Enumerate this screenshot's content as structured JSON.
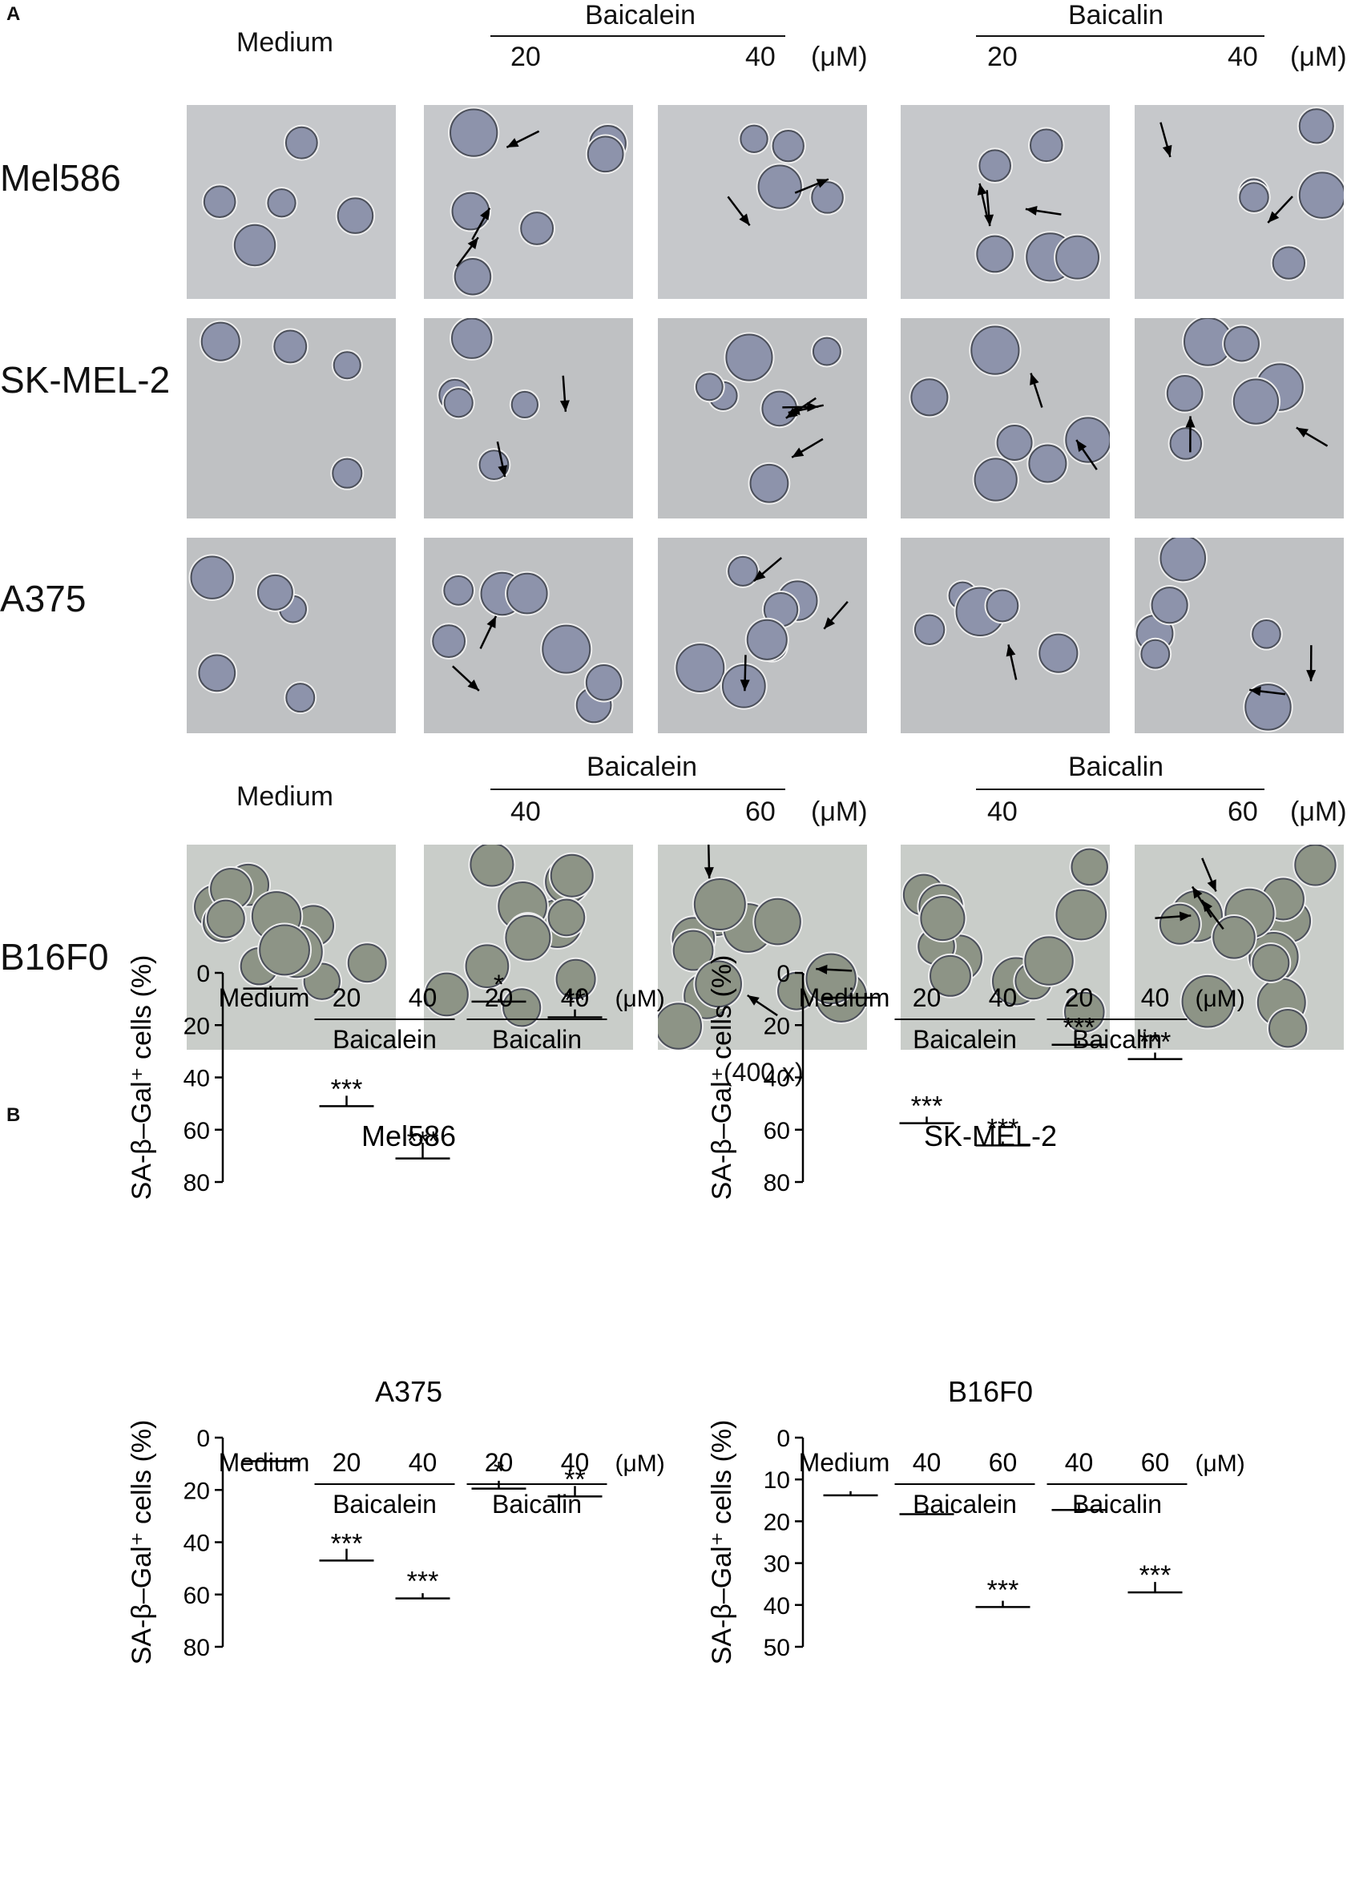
{
  "panel_a": {
    "letter": "A",
    "header_set_1": {
      "medium": "Medium",
      "drug_1": "Baicalein",
      "drug_2": "Baicalin",
      "drug_1_doses": [
        "20",
        "40"
      ],
      "drug_2_doses": [
        "20",
        "40"
      ],
      "unit": "(μM)"
    },
    "header_set_2": {
      "medium": "Medium",
      "drug_1": "Baicalein",
      "drug_2": "Baicalin",
      "drug_1_doses": [
        "40",
        "60"
      ],
      "drug_2_doses": [
        "40",
        "60"
      ],
      "unit": "(μM)"
    },
    "rows": [
      "Mel586",
      "SK-MEL-2",
      "A375",
      "B16F0"
    ],
    "magnification": "(400 x)"
  },
  "panel_b": {
    "letter": "B"
  },
  "chart_data": [
    {
      "type": "bar",
      "title": "Mel586",
      "ylabel": "SA-β–Gal⁺ cells (%)",
      "ylim": [
        0,
        80
      ],
      "yticks": [
        "0",
        "20",
        "40",
        "60",
        "80"
      ],
      "categories": [
        "Medium",
        "20",
        "40",
        "20",
        "40"
      ],
      "values": [
        5,
        47,
        65,
        10,
        14
      ],
      "errors": [
        1,
        4,
        6,
        1,
        3
      ],
      "significance": [
        "",
        "***",
        "***",
        "*",
        "**"
      ],
      "unit": "(μM)",
      "groups": [
        "Baicalein",
        "Baicalin"
      ]
    },
    {
      "type": "bar",
      "title": "SK-MEL-2",
      "ylabel": "SA-β–Gal⁺ cells (%)",
      "ylim": [
        0,
        80
      ],
      "yticks": [
        "0",
        "20",
        "40",
        "60",
        "80"
      ],
      "categories": [
        "Medium",
        "20",
        "40",
        "20",
        "40"
      ],
      "values": [
        8.5,
        55,
        64.5,
        26,
        30.5
      ],
      "errors": [
        1,
        2.5,
        1.5,
        1.5,
        2.5
      ],
      "significance": [
        "",
        "***",
        "***",
        "***",
        "***"
      ],
      "unit": "(μM)",
      "groups": [
        "Baicalein",
        "Baicalin"
      ]
    },
    {
      "type": "bar",
      "title": "A375",
      "ylabel": "SA-β–Gal⁺ cells (%)",
      "ylim": [
        0,
        80
      ],
      "yticks": [
        "0",
        "20",
        "40",
        "60",
        "80"
      ],
      "categories": [
        "Medium",
        "20",
        "40",
        "20",
        "40"
      ],
      "values": [
        8,
        42.5,
        59.5,
        16.5,
        18.5
      ],
      "errors": [
        1,
        4.5,
        2,
        3,
        4
      ],
      "significance": [
        "",
        "***",
        "***",
        "*",
        "**"
      ],
      "unit": "(μM)",
      "groups": [
        "Baicalein",
        "Baicalin"
      ]
    },
    {
      "type": "bar",
      "title": "B16F0",
      "ylabel": "SA-β–Gal⁺ cells (%)",
      "ylim": [
        0,
        50
      ],
      "yticks": [
        "0",
        "10",
        "20",
        "30",
        "40",
        "50"
      ],
      "categories": [
        "Medium",
        "40",
        "60",
        "40",
        "60"
      ],
      "values": [
        12.8,
        16.8,
        39,
        15.5,
        34.5
      ],
      "errors": [
        1,
        1.5,
        1.5,
        1.8,
        2.5
      ],
      "significance": [
        "",
        "",
        "***",
        "",
        "***"
      ],
      "unit": "(μM)",
      "groups": [
        "Baicalein",
        "Baicalin"
      ]
    }
  ]
}
